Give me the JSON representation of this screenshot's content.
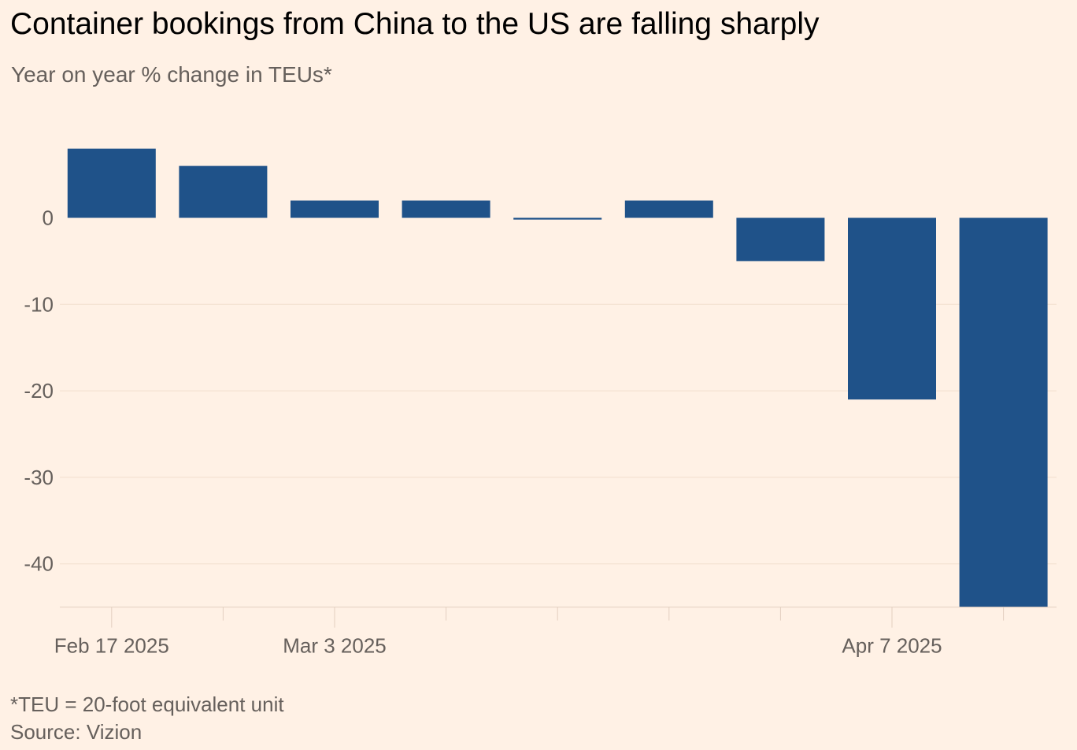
{
  "title": "Container bookings from China to the US are falling sharply",
  "subtitle": "Year on year % change in TEUs*",
  "footnote": "*TEU = 20-foot equivalent unit",
  "source": "Source: Vizion",
  "colors": {
    "background": "#fff1e5",
    "bar": "#1f5289",
    "grid": "#f2dfce",
    "axis": "#e3cfc0",
    "tick_text": "#66605c"
  },
  "chart_data": {
    "type": "bar",
    "title": "Container bookings from China to the US are falling sharply",
    "subtitle": "Year on year % change in TEUs*",
    "ylabel": "",
    "xlabel": "",
    "categories": [
      "2025-02-17",
      "2025-02-24",
      "2025-03-03",
      "2025-03-10",
      "2025-03-17",
      "2025-03-24",
      "2025-03-31",
      "2025-04-07",
      "2025-04-14"
    ],
    "values": [
      8,
      6,
      2,
      2,
      -0.2,
      2,
      -5,
      -21,
      -45
    ],
    "x_tick_labels": [
      {
        "category": "2025-02-17",
        "label": "Feb 17 2025"
      },
      {
        "category": "2025-03-03",
        "label": "Mar 3 2025"
      },
      {
        "category": "2025-04-07",
        "label": "Apr 7 2025"
      }
    ],
    "yticks": [
      0,
      -10,
      -20,
      -30,
      -40
    ],
    "ylim": [
      -45,
      10
    ],
    "grid": true,
    "legend": "none"
  }
}
